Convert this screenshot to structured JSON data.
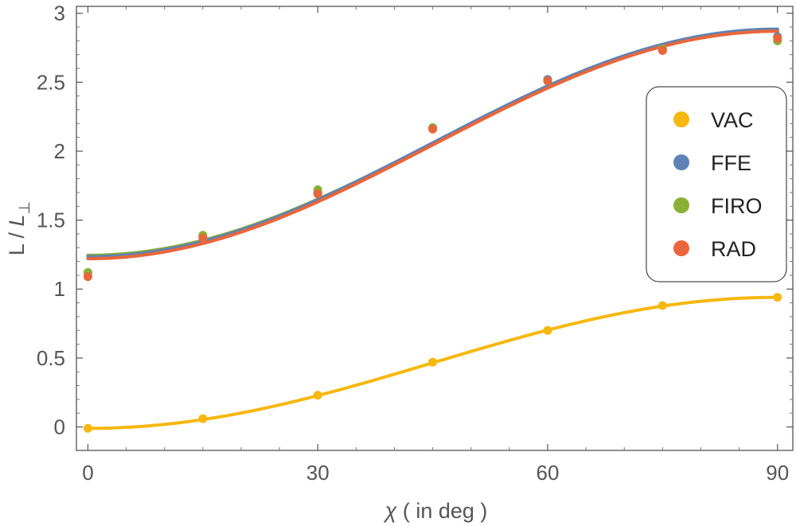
{
  "chart_data": {
    "type": "scatter",
    "xlabel_symbol": "χ",
    "xlabel_text": " ( in deg )",
    "ylabel_text": "L / ",
    "ylabel_symbol": "L",
    "ylabel_subscript": "⊥",
    "xlim": [
      -1.5,
      92
    ],
    "ylim": [
      -0.17,
      3.05
    ],
    "xticks": [
      0,
      30,
      60,
      90
    ],
    "xtick_labels": [
      "0",
      "30",
      "60",
      "90"
    ],
    "yticks": [
      0,
      0.5,
      1,
      1.5,
      2,
      2.5,
      3
    ],
    "ytick_labels": [
      "0",
      "0.5",
      "1",
      "1.5",
      "2",
      "2.5",
      "3"
    ],
    "grid": false,
    "legend_position": "right",
    "series": [
      {
        "name": "VAC",
        "color": "#F6B80F",
        "x": [
          0,
          15,
          30,
          45,
          60,
          75,
          90
        ],
        "y": [
          -0.01,
          0.06,
          0.23,
          0.47,
          0.7,
          0.88,
          0.94
        ],
        "fit": {
          "a": -0.01,
          "b": 0.95
        }
      },
      {
        "name": "FFE",
        "color": "#5E82B5",
        "x": [
          0,
          15,
          30,
          45,
          60,
          75,
          90
        ],
        "y": [
          1.12,
          1.38,
          1.7,
          2.17,
          2.52,
          2.74,
          2.83
        ],
        "fit": {
          "a": 1.235,
          "b": 1.65
        }
      },
      {
        "name": "FIRO",
        "color": "#8AB035",
        "x": [
          0,
          15,
          30,
          45,
          60,
          75,
          90
        ],
        "y": [
          1.12,
          1.39,
          1.72,
          2.17,
          2.51,
          2.74,
          2.8
        ],
        "fit": {
          "a": 1.245,
          "b": 1.625
        }
      },
      {
        "name": "RAD",
        "color": "#E9663A",
        "x": [
          0,
          15,
          30,
          45,
          60,
          75,
          90
        ],
        "y": [
          1.09,
          1.37,
          1.69,
          2.16,
          2.51,
          2.73,
          2.82
        ],
        "fit": {
          "a": 1.22,
          "b": 1.65
        }
      }
    ]
  }
}
